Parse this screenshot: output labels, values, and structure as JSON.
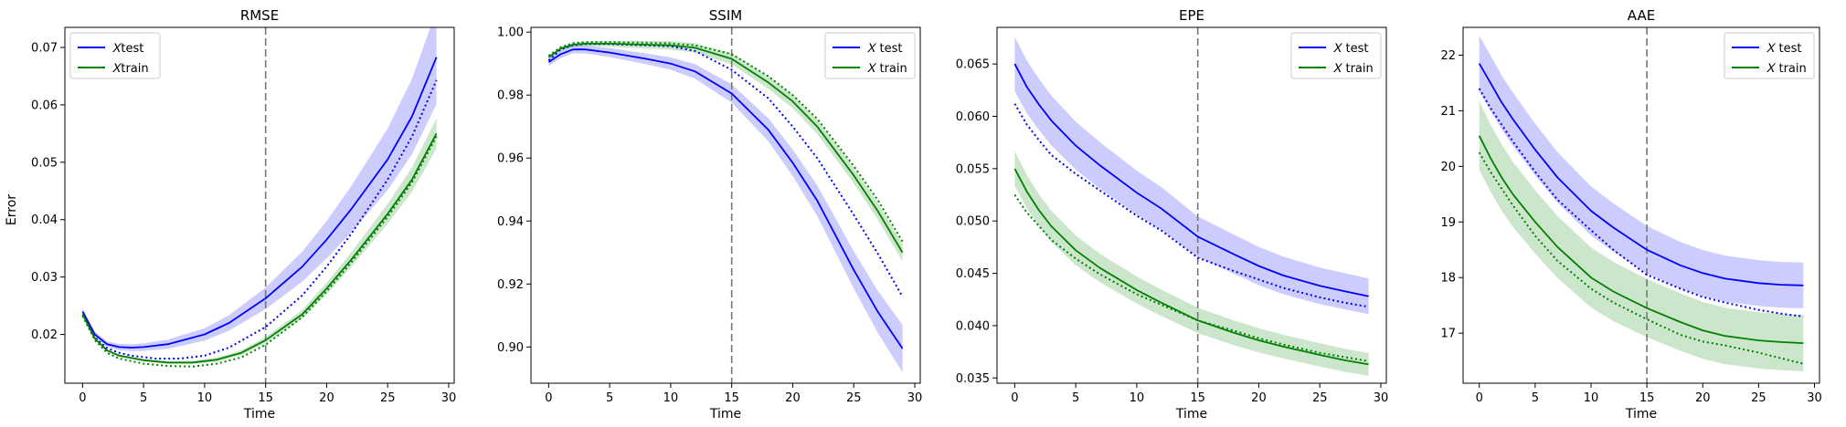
{
  "figure": {
    "ylabel": "Error"
  },
  "chart_data": [
    {
      "type": "line",
      "title": "RMSE",
      "xlabel": "Time",
      "ylabel": "Error",
      "xlim": [
        -1.45,
        30.45
      ],
      "ylim": [
        0.0115,
        0.0735
      ],
      "xticks": [
        0,
        5,
        10,
        15,
        20,
        25,
        30
      ],
      "yticks": [
        0.02,
        0.03,
        0.04,
        0.05,
        0.06,
        0.07
      ],
      "ytick_decimals": 2,
      "grid": false,
      "legend": {
        "position": "top-left",
        "entries": [
          {
            "label": "𝑋test",
            "color": "#0000ff"
          },
          {
            "label": "𝑋train",
            "color": "#008000"
          }
        ]
      },
      "vline": 15,
      "series": [
        {
          "name": "X test",
          "color": "#0000ff",
          "style": "solid",
          "band": 0.1,
          "x": [
            0,
            1,
            2,
            3,
            4,
            5,
            7,
            10,
            12,
            15,
            18,
            20,
            22,
            25,
            27,
            29
          ],
          "y": [
            0.024,
            0.02,
            0.0183,
            0.0178,
            0.0177,
            0.0178,
            0.0183,
            0.02,
            0.022,
            0.0263,
            0.0318,
            0.0365,
            0.0418,
            0.0505,
            0.058,
            0.0683
          ]
        },
        {
          "name": "",
          "color": "#0000ff",
          "style": "dotted",
          "x": [
            0,
            1,
            2,
            3,
            4,
            6,
            8,
            10,
            12,
            15,
            18,
            20,
            22,
            25,
            27,
            29
          ],
          "y": [
            0.0235,
            0.0195,
            0.0176,
            0.0168,
            0.0163,
            0.0158,
            0.0158,
            0.0163,
            0.0177,
            0.0213,
            0.0268,
            0.0318,
            0.0375,
            0.047,
            0.0545,
            0.0643
          ]
        },
        {
          "name": "X train",
          "color": "#008000",
          "style": "solid",
          "band": 0.04,
          "x": [
            0,
            1,
            2,
            3,
            5,
            7,
            9,
            11,
            13,
            15,
            18,
            20,
            22,
            25,
            27,
            29
          ],
          "y": [
            0.0235,
            0.0193,
            0.0172,
            0.0163,
            0.0155,
            0.0151,
            0.0151,
            0.0156,
            0.0168,
            0.019,
            0.0235,
            0.028,
            0.033,
            0.041,
            0.047,
            0.055
          ]
        },
        {
          "name": "",
          "color": "#008000",
          "style": "dotted",
          "x": [
            0,
            1,
            2,
            3,
            5,
            7,
            9,
            11,
            13,
            15,
            18,
            20,
            22,
            25,
            27,
            29
          ],
          "y": [
            0.0232,
            0.019,
            0.0168,
            0.0158,
            0.0149,
            0.0145,
            0.0144,
            0.0149,
            0.016,
            0.0182,
            0.023,
            0.0275,
            0.0325,
            0.0405,
            0.0465,
            0.0545
          ]
        }
      ]
    },
    {
      "type": "line",
      "title": "SSIM",
      "xlabel": "Time",
      "ylabel": "",
      "xlim": [
        -1.45,
        30.45
      ],
      "ylim": [
        0.8885,
        1.0015
      ],
      "xticks": [
        0,
        5,
        10,
        15,
        20,
        25,
        30
      ],
      "yticks": [
        0.9,
        0.92,
        0.94,
        0.96,
        0.98,
        1.0
      ],
      "ytick_decimals": 2,
      "grid": false,
      "legend": {
        "position": "top-right",
        "entries": [
          {
            "label": "𝑋 test",
            "color": "#0000ff"
          },
          {
            "label": "𝑋 train",
            "color": "#008000"
          }
        ]
      },
      "vline": 15,
      "series": [
        {
          "name": "X test",
          "color": "#0000ff",
          "style": "solid",
          "band": 0.0035,
          "band_growth": true,
          "x": [
            0,
            1,
            2,
            3,
            5,
            8,
            10,
            12,
            15,
            18,
            20,
            22,
            25,
            27,
            29
          ],
          "y": [
            0.9905,
            0.993,
            0.9945,
            0.9945,
            0.9935,
            0.9915,
            0.99,
            0.9875,
            0.9805,
            0.969,
            0.9585,
            0.9465,
            0.9245,
            0.911,
            0.8995
          ]
        },
        {
          "name": "",
          "color": "#0000ff",
          "style": "dotted",
          "x": [
            0,
            1,
            2,
            3,
            5,
            8,
            10,
            12,
            15,
            18,
            20,
            22,
            25,
            27,
            29
          ],
          "y": [
            0.991,
            0.9945,
            0.9958,
            0.9962,
            0.9962,
            0.9958,
            0.9955,
            0.994,
            0.988,
            0.979,
            0.97,
            0.96,
            0.942,
            0.9295,
            0.916
          ]
        },
        {
          "name": "X train",
          "color": "#008000",
          "style": "solid",
          "band": 0.0025,
          "x": [
            0,
            1,
            2,
            3,
            5,
            8,
            10,
            12,
            15,
            18,
            20,
            22,
            25,
            27,
            29
          ],
          "y": [
            0.992,
            0.9948,
            0.996,
            0.9963,
            0.9963,
            0.996,
            0.9958,
            0.995,
            0.9915,
            0.984,
            0.978,
            0.97,
            0.9545,
            0.943,
            0.93
          ]
        },
        {
          "name": "",
          "color": "#008000",
          "style": "dotted",
          "x": [
            0,
            1,
            2,
            3,
            5,
            8,
            10,
            12,
            15,
            18,
            20,
            22,
            25,
            27,
            29
          ],
          "y": [
            0.9925,
            0.9952,
            0.9965,
            0.9968,
            0.9968,
            0.9966,
            0.9964,
            0.9958,
            0.993,
            0.986,
            0.98,
            0.9725,
            0.9575,
            0.9465,
            0.9335
          ]
        }
      ]
    },
    {
      "type": "line",
      "title": "EPE",
      "xlabel": "Time",
      "ylabel": "",
      "xlim": [
        -1.45,
        30.45
      ],
      "ylim": [
        0.0345,
        0.0685
      ],
      "xticks": [
        0,
        5,
        10,
        15,
        20,
        25,
        30
      ],
      "yticks": [
        0.035,
        0.04,
        0.045,
        0.05,
        0.055,
        0.06,
        0.065
      ],
      "ytick_decimals": 3,
      "grid": false,
      "legend": {
        "position": "top-right",
        "entries": [
          {
            "label": "𝑋 test",
            "color": "#0000ff"
          },
          {
            "label": "𝑋 train",
            "color": "#008000"
          }
        ]
      },
      "vline": 15,
      "series": [
        {
          "name": "X test",
          "color": "#0000ff",
          "style": "solid",
          "band": 0.04,
          "x": [
            0,
            1,
            2,
            3,
            5,
            7,
            10,
            12,
            15,
            18,
            20,
            22,
            25,
            27,
            29
          ],
          "y": [
            0.065,
            0.0628,
            0.0611,
            0.0596,
            0.0572,
            0.0553,
            0.0527,
            0.0512,
            0.0485,
            0.0468,
            0.0457,
            0.0448,
            0.0438,
            0.0433,
            0.0428
          ]
        },
        {
          "name": "",
          "color": "#0000ff",
          "style": "dotted",
          "x": [
            0,
            1,
            2,
            3,
            5,
            7,
            10,
            12,
            15,
            18,
            20,
            22,
            25,
            27,
            29
          ],
          "y": [
            0.0612,
            0.0592,
            0.0577,
            0.0563,
            0.0545,
            0.0529,
            0.0505,
            0.0491,
            0.0465,
            0.0452,
            0.0444,
            0.0436,
            0.0427,
            0.0422,
            0.0418
          ]
        },
        {
          "name": "X train",
          "color": "#008000",
          "style": "solid",
          "band": 0.03,
          "x": [
            0,
            1,
            2,
            3,
            5,
            7,
            10,
            12,
            15,
            18,
            20,
            22,
            25,
            27,
            29
          ],
          "y": [
            0.055,
            0.0528,
            0.051,
            0.0495,
            0.0472,
            0.0455,
            0.0434,
            0.0422,
            0.0405,
            0.0393,
            0.0386,
            0.038,
            0.0372,
            0.0367,
            0.0363
          ]
        },
        {
          "name": "",
          "color": "#008000",
          "style": "dotted",
          "x": [
            0,
            1,
            2,
            3,
            5,
            7,
            10,
            12,
            15,
            18,
            20,
            22,
            25,
            27,
            29
          ],
          "y": [
            0.0525,
            0.0508,
            0.0495,
            0.0482,
            0.0464,
            0.0449,
            0.043,
            0.042,
            0.0405,
            0.0395,
            0.0388,
            0.0382,
            0.0374,
            0.037,
            0.0366
          ]
        }
      ]
    },
    {
      "type": "line",
      "title": "AAE",
      "xlabel": "Time",
      "ylabel": "",
      "xlim": [
        -1.45,
        30.45
      ],
      "ylim": [
        16.1,
        22.5
      ],
      "xticks": [
        0,
        5,
        10,
        15,
        20,
        25,
        30
      ],
      "yticks": [
        17,
        18,
        19,
        20,
        21,
        22
      ],
      "ytick_decimals": 0,
      "grid": false,
      "legend": {
        "position": "top-right",
        "entries": [
          {
            "label": "𝑋 test",
            "color": "#0000ff"
          },
          {
            "label": "𝑋 train",
            "color": "#008000"
          }
        ]
      },
      "vline": 15,
      "series": [
        {
          "name": "X test",
          "color": "#0000ff",
          "style": "solid",
          "band": 0.023,
          "x": [
            0,
            1,
            2,
            3,
            5,
            7,
            10,
            12,
            15,
            18,
            20,
            22,
            25,
            27,
            29
          ],
          "y": [
            21.85,
            21.5,
            21.15,
            20.85,
            20.3,
            19.8,
            19.2,
            18.9,
            18.5,
            18.22,
            18.08,
            17.98,
            17.9,
            17.87,
            17.86
          ]
        },
        {
          "name": "",
          "color": "#0000ff",
          "style": "dotted",
          "x": [
            0,
            1,
            2,
            3,
            5,
            7,
            10,
            12,
            15,
            18,
            20,
            22,
            25,
            27,
            29
          ],
          "y": [
            21.4,
            21.05,
            20.75,
            20.45,
            19.9,
            19.4,
            18.85,
            18.5,
            18.05,
            17.8,
            17.65,
            17.55,
            17.42,
            17.35,
            17.3
          ]
        },
        {
          "name": "X train",
          "color": "#008000",
          "style": "solid",
          "band": 0.03,
          "x": [
            0,
            1,
            2,
            3,
            5,
            7,
            10,
            12,
            15,
            18,
            20,
            22,
            25,
            27,
            29
          ],
          "y": [
            20.55,
            20.15,
            19.8,
            19.5,
            19.0,
            18.55,
            18.0,
            17.75,
            17.45,
            17.2,
            17.05,
            16.95,
            16.87,
            16.84,
            16.82
          ]
        },
        {
          "name": "",
          "color": "#008000",
          "style": "dotted",
          "x": [
            0,
            1,
            2,
            3,
            5,
            7,
            10,
            12,
            15,
            18,
            20,
            22,
            25,
            27,
            29
          ],
          "y": [
            20.25,
            19.9,
            19.6,
            19.3,
            18.75,
            18.3,
            17.8,
            17.55,
            17.25,
            16.97,
            16.85,
            16.78,
            16.65,
            16.55,
            16.45
          ]
        }
      ]
    }
  ]
}
